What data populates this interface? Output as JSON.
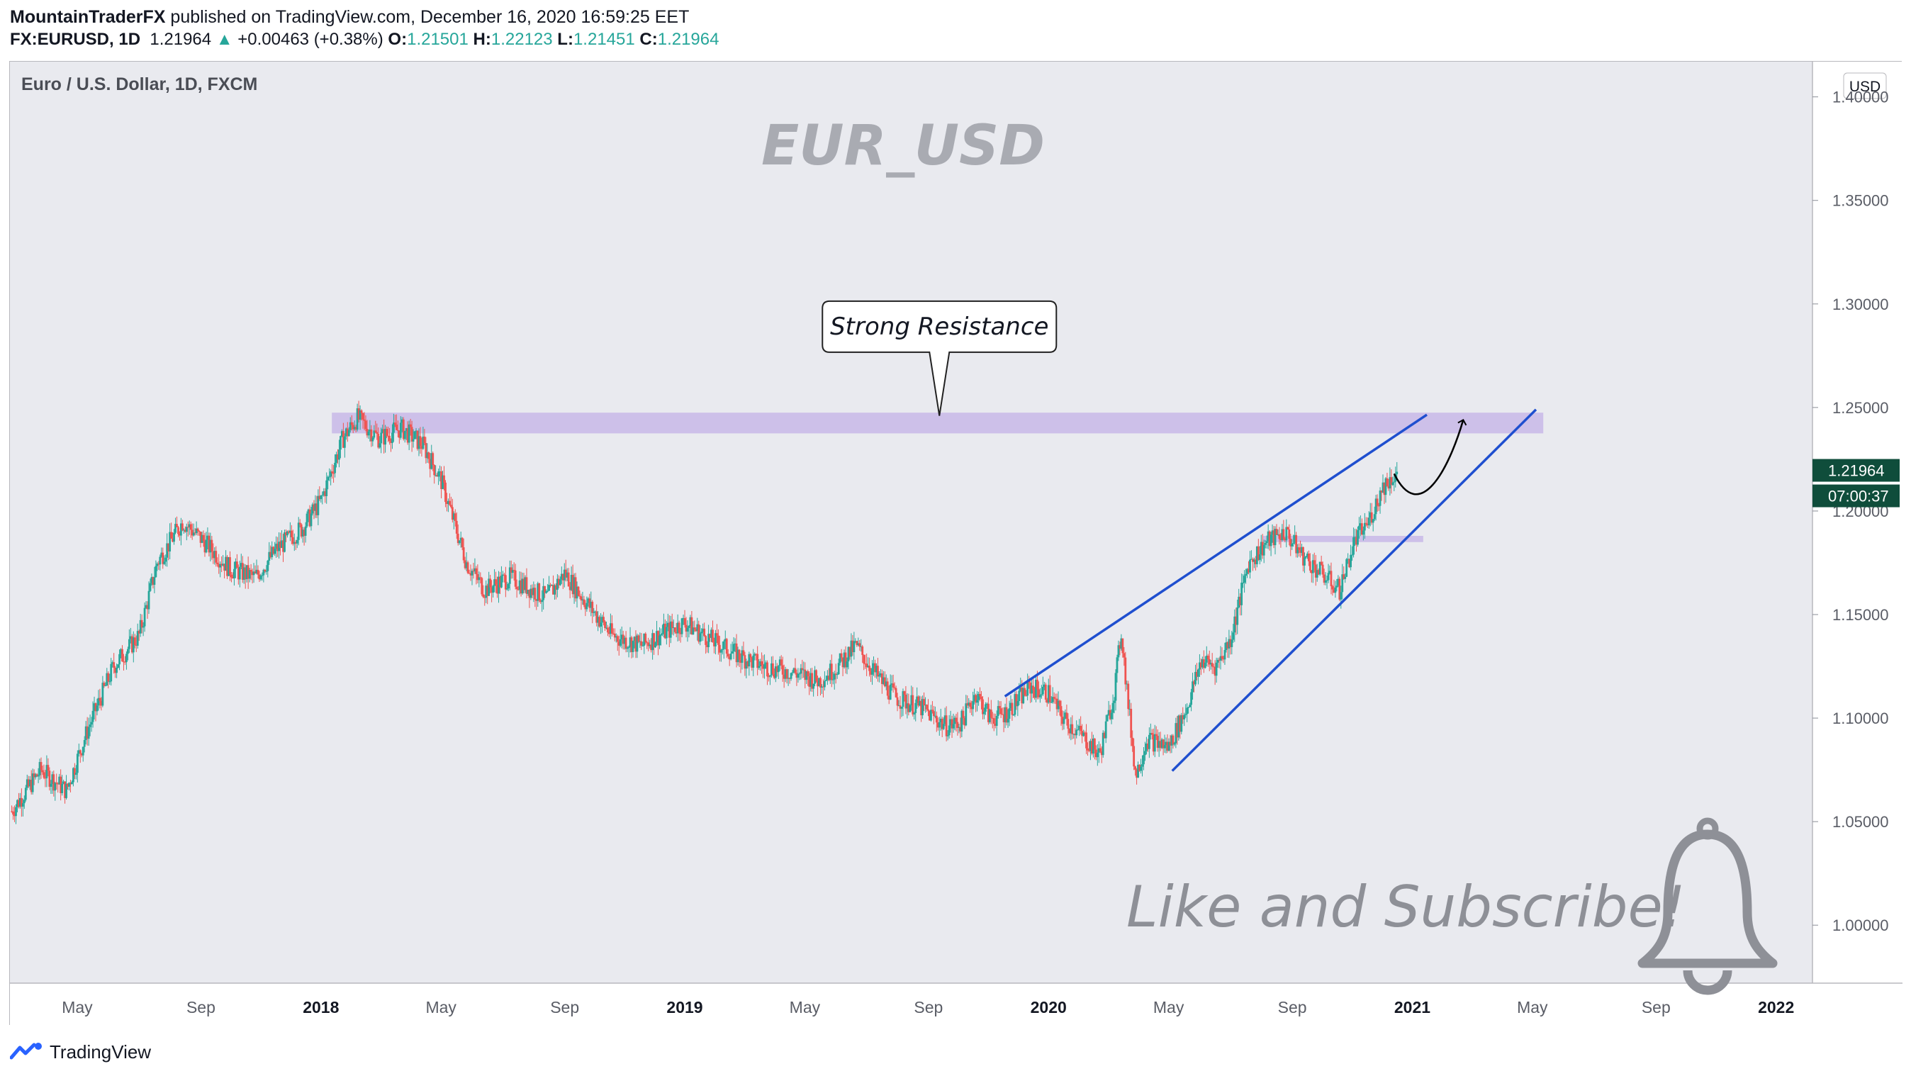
{
  "header": {
    "publisher": "MountainTraderFX",
    "published_text": "published on TradingView.com, December 16, 2020 16:59:25 EET",
    "symbol": "FX:EURUSD, 1D",
    "last": "1.21964",
    "change": "+0.00463 (+0.38%)",
    "o_label": "O:",
    "o_value": "1.21501",
    "h_label": "H:",
    "h_value": "1.22123",
    "l_label": "L:",
    "l_value": "1.21451",
    "c_label": "C:",
    "c_value": "1.21964"
  },
  "footer": {
    "brand": "TradingView"
  },
  "colors": {
    "up": "#26a69a",
    "down": "#ef5350",
    "trend": "#1f4fcf",
    "zone": "#c8b8e8",
    "bg": "#e9eaef",
    "axis_text": "#5a5d66",
    "price_tag": "#0f4d3b"
  },
  "chart_data": {
    "type": "candlestick",
    "instrument_label": "Euro / U.S. Dollar, 1D, FXCM",
    "watermark": "EUR_USD",
    "currency": "USD",
    "price_axis_ticks": [
      "1.40000",
      "1.35000",
      "1.30000",
      "1.25000",
      "1.20000",
      "1.15000",
      "1.10000",
      "1.05000",
      "1.00000"
    ],
    "price_range": [
      0.972,
      1.417
    ],
    "time_axis_labels": [
      {
        "label": "May",
        "t": 2017.33,
        "bold": false
      },
      {
        "label": "Sep",
        "t": 2017.67,
        "bold": false
      },
      {
        "label": "2018",
        "t": 2018.0,
        "bold": true
      },
      {
        "label": "May",
        "t": 2018.33,
        "bold": false
      },
      {
        "label": "Sep",
        "t": 2018.67,
        "bold": false
      },
      {
        "label": "2019",
        "t": 2019.0,
        "bold": true
      },
      {
        "label": "May",
        "t": 2019.33,
        "bold": false
      },
      {
        "label": "Sep",
        "t": 2019.67,
        "bold": false
      },
      {
        "label": "2020",
        "t": 2020.0,
        "bold": true
      },
      {
        "label": "May",
        "t": 2020.33,
        "bold": false
      },
      {
        "label": "Sep",
        "t": 2020.67,
        "bold": false
      },
      {
        "label": "2021",
        "t": 2021.0,
        "bold": true
      },
      {
        "label": "May",
        "t": 2021.33,
        "bold": false
      },
      {
        "label": "Sep",
        "t": 2021.67,
        "bold": false
      },
      {
        "label": "2022",
        "t": 2022.0,
        "bold": true
      }
    ],
    "time_range": [
      2017.145,
      2022.1
    ],
    "price_path": [
      [
        2017.15,
        1.055
      ],
      [
        2017.23,
        1.075
      ],
      [
        2017.3,
        1.065
      ],
      [
        2017.36,
        1.095
      ],
      [
        2017.43,
        1.125
      ],
      [
        2017.5,
        1.14
      ],
      [
        2017.55,
        1.175
      ],
      [
        2017.62,
        1.195
      ],
      [
        2017.68,
        1.185
      ],
      [
        2017.75,
        1.172
      ],
      [
        2017.82,
        1.168
      ],
      [
        2017.88,
        1.182
      ],
      [
        2017.95,
        1.192
      ],
      [
        2018.0,
        1.205
      ],
      [
        2018.06,
        1.235
      ],
      [
        2018.1,
        1.245
      ],
      [
        2018.16,
        1.235
      ],
      [
        2018.22,
        1.24
      ],
      [
        2018.28,
        1.232
      ],
      [
        2018.33,
        1.215
      ],
      [
        2018.4,
        1.175
      ],
      [
        2018.45,
        1.162
      ],
      [
        2018.52,
        1.168
      ],
      [
        2018.58,
        1.162
      ],
      [
        2018.62,
        1.158
      ],
      [
        2018.67,
        1.17
      ],
      [
        2018.72,
        1.158
      ],
      [
        2018.8,
        1.14
      ],
      [
        2018.88,
        1.135
      ],
      [
        2018.95,
        1.142
      ],
      [
        2019.0,
        1.146
      ],
      [
        2019.07,
        1.138
      ],
      [
        2019.15,
        1.13
      ],
      [
        2019.22,
        1.125
      ],
      [
        2019.3,
        1.122
      ],
      [
        2019.37,
        1.118
      ],
      [
        2019.42,
        1.125
      ],
      [
        2019.47,
        1.135
      ],
      [
        2019.53,
        1.12
      ],
      [
        2019.58,
        1.11
      ],
      [
        2019.65,
        1.105
      ],
      [
        2019.72,
        1.096
      ],
      [
        2019.76,
        1.098
      ],
      [
        2019.8,
        1.112
      ],
      [
        2019.84,
        1.1
      ],
      [
        2019.88,
        1.102
      ],
      [
        2019.95,
        1.115
      ],
      [
        2020.0,
        1.112
      ],
      [
        2020.04,
        1.1
      ],
      [
        2020.1,
        1.09
      ],
      [
        2020.14,
        1.082
      ],
      [
        2020.18,
        1.112
      ],
      [
        2020.2,
        1.142
      ],
      [
        2020.22,
        1.105
      ],
      [
        2020.24,
        1.072
      ],
      [
        2020.27,
        1.09
      ],
      [
        2020.33,
        1.086
      ],
      [
        2020.38,
        1.105
      ],
      [
        2020.42,
        1.128
      ],
      [
        2020.46,
        1.125
      ],
      [
        2020.5,
        1.138
      ],
      [
        2020.55,
        1.175
      ],
      [
        2020.6,
        1.185
      ],
      [
        2020.65,
        1.19
      ],
      [
        2020.7,
        1.178
      ],
      [
        2020.75,
        1.17
      ],
      [
        2020.8,
        1.162
      ],
      [
        2020.84,
        1.185
      ],
      [
        2020.88,
        1.195
      ],
      [
        2020.92,
        1.212
      ],
      [
        2020.96,
        1.219
      ]
    ],
    "price_tag": {
      "value": "1.21964",
      "countdown": "07:00:37",
      "price": 1.21964
    },
    "resistance_zone": {
      "t_start": 2018.03,
      "t_end": 2021.36,
      "price_low": 1.2375,
      "price_high": 1.2475
    },
    "support_zone": {
      "t_start": 2020.59,
      "t_end": 2021.03,
      "price_low": 1.185,
      "price_high": 1.188
    },
    "trendlines": [
      {
        "t1": 2019.88,
        "p1": 1.1105,
        "t2": 2021.04,
        "p2": 1.2465
      },
      {
        "t1": 2020.34,
        "p1": 1.0745,
        "t2": 2021.34,
        "p2": 1.249
      }
    ],
    "projection_path": [
      [
        2020.95,
        1.218
      ],
      [
        2021.02,
        1.2
      ],
      [
        2021.1,
        1.22
      ],
      [
        2021.14,
        1.244
      ]
    ],
    "annotation": {
      "text": "Strong Resistance",
      "t": 2019.7,
      "p": 1.289,
      "pointer_t": 2019.7,
      "pointer_p": 1.246
    },
    "call_to_action": "Like and Subscribe!"
  }
}
